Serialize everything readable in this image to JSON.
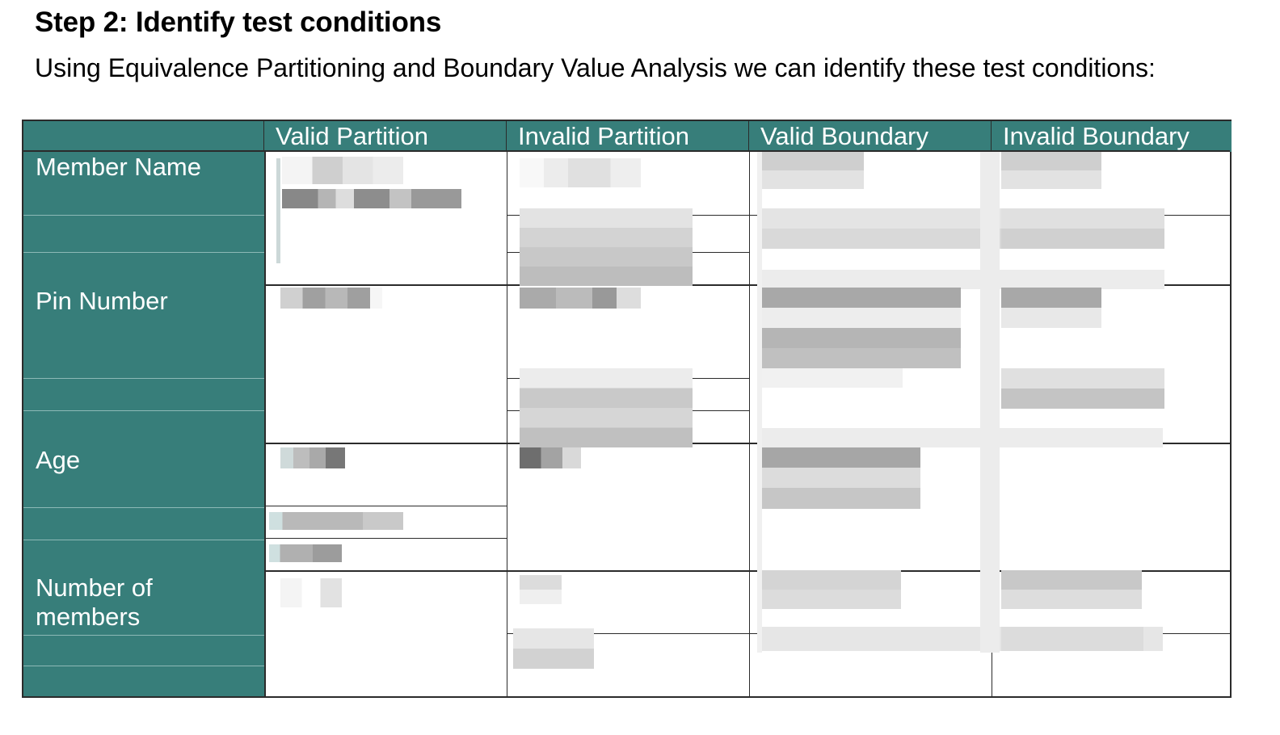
{
  "heading": "Step 2: Identify test conditions",
  "intro": "Using Equivalence Partitioning and Boundary Value Analysis we can identify these test conditions:",
  "table": {
    "columns": [
      "Valid Partition",
      "Invalid Partition",
      "Valid Boundary",
      "Invalid Boundary"
    ],
    "rows": [
      "Member Name",
      "Pin Number",
      "Age",
      "Number of members"
    ]
  }
}
